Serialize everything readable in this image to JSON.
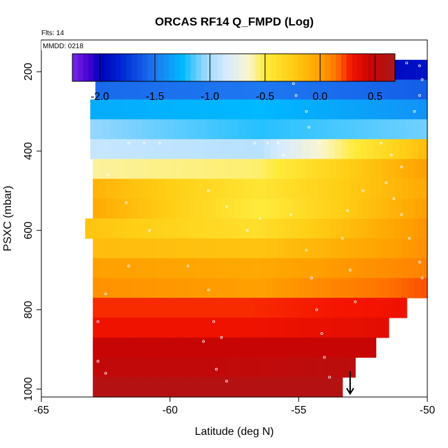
{
  "chart_data": {
    "type": "heatmap",
    "title": "ORCAS RF14 Q_FMPD (Log)",
    "flights_label": "Flts: 14",
    "date_label": "MMDD: 0218",
    "xlabel": "Latitude (deg N)",
    "ylabel": "PSXC (mbar)",
    "xlim": [
      -65,
      -50
    ],
    "ylim": [
      1020,
      120
    ],
    "x_ticks": [
      -65,
      -60,
      -55,
      -50
    ],
    "y_ticks": [
      200,
      400,
      600,
      800,
      1000
    ],
    "grid": false,
    "colorbar": {
      "range": [
        -2.25,
        0.68
      ],
      "ticks": [
        -2.0,
        -1.5,
        -1.0,
        -0.5,
        0.0,
        0.5
      ],
      "tick_labels": [
        "-2.0",
        "-1.5",
        "-1.0",
        "-0.5",
        "0.0",
        "0.5"
      ]
    },
    "pressure_bands": [
      {
        "p_top": 170,
        "p_bot": 220,
        "lat_min": -62.7,
        "lat_max": -50.0,
        "value_south": -2.0,
        "value_mid": -2.15,
        "value_north": -1.9
      },
      {
        "p_top": 220,
        "p_bot": 270,
        "lat_min": -62.9,
        "lat_max": -50.0,
        "value_south": -1.55,
        "value_mid": -1.5,
        "value_north": -1.6
      },
      {
        "p_top": 270,
        "p_bot": 320,
        "lat_min": -63.1,
        "lat_max": -50.0,
        "value_south": -1.3,
        "value_mid": -1.25,
        "value_north": -1.4
      },
      {
        "p_top": 320,
        "p_bot": 370,
        "lat_min": -63.1,
        "lat_max": -50.0,
        "value_south": -1.05,
        "value_mid": -1.2,
        "value_north": -1.1
      },
      {
        "p_top": 370,
        "p_bot": 420,
        "lat_min": -63.1,
        "lat_max": -50.0,
        "value_south": -0.9,
        "value_mid": -0.95,
        "value_north": -0.15
      },
      {
        "p_top": 420,
        "p_bot": 470,
        "lat_min": -63.0,
        "lat_max": -50.0,
        "value_south": -0.6,
        "value_mid": -0.55,
        "value_north": 0.0
      },
      {
        "p_top": 470,
        "p_bot": 520,
        "lat_min": -63.0,
        "lat_max": -50.0,
        "value_south": -0.1,
        "value_mid": -0.45,
        "value_north": -0.05
      },
      {
        "p_top": 520,
        "p_bot": 570,
        "lat_min": -63.0,
        "lat_max": -50.0,
        "value_south": -0.05,
        "value_mid": -0.5,
        "value_north": 0.0
      },
      {
        "p_top": 570,
        "p_bot": 620,
        "lat_min": -63.3,
        "lat_max": -50.0,
        "value_south": -0.2,
        "value_mid": -0.4,
        "value_north": 0.05
      },
      {
        "p_top": 620,
        "p_bot": 670,
        "lat_min": -63.0,
        "lat_max": -50.0,
        "value_south": -0.15,
        "value_mid": -0.2,
        "value_north": 0.05
      },
      {
        "p_top": 670,
        "p_bot": 720,
        "lat_min": -63.0,
        "lat_max": -50.0,
        "value_south": 0.0,
        "value_mid": -0.05,
        "value_north": 0.1
      },
      {
        "p_top": 720,
        "p_bot": 770,
        "lat_min": -63.0,
        "lat_max": -50.0,
        "value_south": 0.05,
        "value_mid": 0.0,
        "value_north": 0.2
      },
      {
        "p_top": 770,
        "p_bot": 820,
        "lat_min": -63.0,
        "lat_max": -50.8,
        "value_south": 0.25,
        "value_mid": 0.25,
        "value_north": 0.3
      },
      {
        "p_top": 820,
        "p_bot": 870,
        "lat_min": -63.0,
        "lat_max": -51.5,
        "value_south": 0.3,
        "value_mid": 0.3,
        "value_north": 0.35
      },
      {
        "p_top": 870,
        "p_bot": 920,
        "lat_min": -63.0,
        "lat_max": -52.0,
        "value_south": 0.45,
        "value_mid": 0.45,
        "value_north": 0.45
      },
      {
        "p_top": 920,
        "p_bot": 970,
        "lat_min": -63.0,
        "lat_max": -52.8,
        "value_south": 0.5,
        "value_mid": 0.5,
        "value_north": 0.55
      },
      {
        "p_top": 970,
        "p_bot": 1020,
        "lat_min": -63.0,
        "lat_max": -53.3,
        "value_south": 0.6,
        "value_mid": 0.6,
        "value_north": 0.6
      }
    ],
    "track_points": [
      {
        "lat": -62.3,
        "p": 178
      },
      {
        "lat": -61.8,
        "p": 178
      },
      {
        "lat": -61.3,
        "p": 178
      },
      {
        "lat": -60.8,
        "p": 178
      },
      {
        "lat": -60.3,
        "p": 178
      },
      {
        "lat": -59.8,
        "p": 178
      },
      {
        "lat": -59.3,
        "p": 178
      },
      {
        "lat": -58.8,
        "p": 178
      },
      {
        "lat": -58.3,
        "p": 178
      },
      {
        "lat": -57.8,
        "p": 178
      },
      {
        "lat": -57.3,
        "p": 178
      },
      {
        "lat": -56.8,
        "p": 178
      },
      {
        "lat": -56.3,
        "p": 178
      },
      {
        "lat": -55.6,
        "p": 182
      },
      {
        "lat": -55.3,
        "p": 200
      },
      {
        "lat": -55.2,
        "p": 230
      },
      {
        "lat": -55.1,
        "p": 260
      },
      {
        "lat": -54.7,
        "p": 300
      },
      {
        "lat": -54.6,
        "p": 340
      },
      {
        "lat": -54.2,
        "p": 380
      },
      {
        "lat": -53.3,
        "p": 178
      },
      {
        "lat": -52.8,
        "p": 178
      },
      {
        "lat": -52.3,
        "p": 178
      },
      {
        "lat": -51.8,
        "p": 178
      },
      {
        "lat": -51.3,
        "p": 178
      },
      {
        "lat": -50.8,
        "p": 178
      },
      {
        "lat": -50.3,
        "p": 185
      },
      {
        "lat": -50.2,
        "p": 220
      },
      {
        "lat": -50.3,
        "p": 260
      },
      {
        "lat": -50.5,
        "p": 300
      },
      {
        "lat": -61.6,
        "p": 380
      },
      {
        "lat": -61.0,
        "p": 380
      },
      {
        "lat": -60.4,
        "p": 380
      },
      {
        "lat": -56.7,
        "p": 380
      },
      {
        "lat": -56.2,
        "p": 380
      },
      {
        "lat": -55.8,
        "p": 380
      },
      {
        "lat": -55.6,
        "p": 410
      },
      {
        "lat": -51.8,
        "p": 380
      },
      {
        "lat": -51.4,
        "p": 410
      },
      {
        "lat": -51.0,
        "p": 440
      },
      {
        "lat": -62.4,
        "p": 460
      },
      {
        "lat": -61.7,
        "p": 530
      },
      {
        "lat": -60.8,
        "p": 600
      },
      {
        "lat": -61.6,
        "p": 690
      },
      {
        "lat": -62.5,
        "p": 760
      },
      {
        "lat": -62.8,
        "p": 830
      },
      {
        "lat": -62.8,
        "p": 930
      },
      {
        "lat": -62.5,
        "p": 960
      },
      {
        "lat": -58.5,
        "p": 500
      },
      {
        "lat": -57.8,
        "p": 540
      },
      {
        "lat": -57.0,
        "p": 600
      },
      {
        "lat": -56.5,
        "p": 570
      },
      {
        "lat": -59.3,
        "p": 690
      },
      {
        "lat": -58.5,
        "p": 750
      },
      {
        "lat": -58.3,
        "p": 830
      },
      {
        "lat": -58.0,
        "p": 870
      },
      {
        "lat": -58.7,
        "p": 880
      },
      {
        "lat": -58.2,
        "p": 950
      },
      {
        "lat": -57.8,
        "p": 980
      },
      {
        "lat": -55.3,
        "p": 560
      },
      {
        "lat": -54.7,
        "p": 650
      },
      {
        "lat": -54.5,
        "p": 720
      },
      {
        "lat": -54.3,
        "p": 800
      },
      {
        "lat": -54.1,
        "p": 860
      },
      {
        "lat": -54.0,
        "p": 920
      },
      {
        "lat": -53.8,
        "p": 970
      },
      {
        "lat": -53.3,
        "p": 620
      },
      {
        "lat": -53.0,
        "p": 700
      },
      {
        "lat": -52.8,
        "p": 780
      },
      {
        "lat": -53.1,
        "p": 550
      },
      {
        "lat": -52.5,
        "p": 500
      },
      {
        "lat": -51.6,
        "p": 480
      },
      {
        "lat": -51.3,
        "p": 520
      },
      {
        "lat": -51.0,
        "p": 560
      },
      {
        "lat": -50.7,
        "p": 620
      },
      {
        "lat": -50.3,
        "p": 680
      },
      {
        "lat": -50.2,
        "p": 720
      }
    ],
    "marker": {
      "lat": -53.0,
      "p": 1000,
      "symbol": "down-arrow"
    }
  }
}
